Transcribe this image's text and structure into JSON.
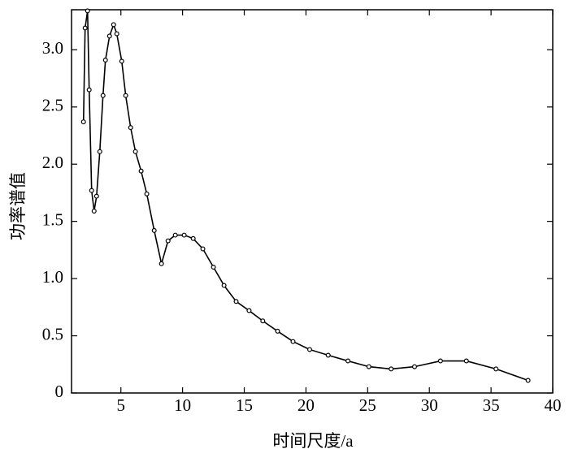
{
  "chart_data": {
    "type": "line",
    "x_label": "时间尺度/a",
    "y_label": "功率谱值",
    "x": [
      1.97,
      2.1,
      2.3,
      2.43,
      2.63,
      2.83,
      3.03,
      3.29,
      3.55,
      3.75,
      4.08,
      4.41,
      4.67,
      5.07,
      5.39,
      5.79,
      6.18,
      6.64,
      7.1,
      7.7,
      8.29,
      8.82,
      9.41,
      10.13,
      10.86,
      11.64,
      12.5,
      13.36,
      14.34,
      15.39,
      16.5,
      17.7,
      18.95,
      20.3,
      21.8,
      23.4,
      25.1,
      26.9,
      28.8,
      30.9,
      33.0,
      35.4,
      38.0
    ],
    "series": [
      {
        "color": "#000000",
        "values": [
          2.37,
          3.19,
          3.34,
          2.65,
          1.77,
          1.59,
          1.72,
          2.11,
          2.6,
          2.91,
          3.12,
          3.22,
          3.14,
          2.9,
          2.6,
          2.32,
          2.11,
          1.94,
          1.74,
          1.42,
          1.13,
          1.33,
          1.38,
          1.38,
          1.35,
          1.26,
          1.1,
          0.94,
          0.8,
          0.72,
          0.63,
          0.54,
          0.45,
          0.38,
          0.33,
          0.28,
          0.23,
          0.21,
          0.23,
          0.28,
          0.28,
          0.21,
          0.11
        ]
      }
    ],
    "xlim": [
      1,
      40
    ],
    "xticks": [
      5,
      10,
      15,
      20,
      25,
      30,
      35,
      40
    ],
    "ylim": [
      0,
      3.35
    ],
    "yticks": [
      0,
      0.5,
      {
        "value": 1,
        "label": "1.0"
      },
      1.5,
      {
        "value": 2,
        "label": "2.0"
      },
      2.5,
      {
        "value": 3,
        "label": "3.0"
      }
    ]
  }
}
